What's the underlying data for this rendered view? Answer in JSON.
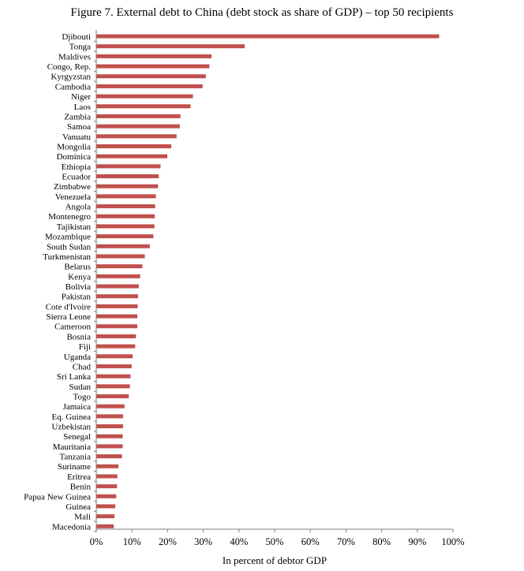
{
  "chart_data": {
    "type": "bar",
    "orientation": "horizontal",
    "title": "Figure 7. External debt to China (debt stock as share of GDP) – top 50 recipients",
    "xlabel": "In percent of debtor GDP",
    "ylabel": "",
    "xlim": [
      0,
      100
    ],
    "xticks": [
      "0%",
      "10%",
      "20%",
      "30%",
      "40%",
      "50%",
      "60%",
      "70%",
      "80%",
      "90%",
      "100%"
    ],
    "grid": false,
    "legend": "none",
    "bar_color": "#c0504d",
    "categories": [
      "Djibouti",
      "Tonga",
      "Maldives",
      "Congo, Rep.",
      "Kyrgyzstan",
      "Cambodia",
      "Niger",
      "Laos",
      "Zambia",
      "Samoa",
      "Vanuatu",
      "Mongolia",
      "Dominica",
      "Ethiopia",
      "Ecuador",
      "Zimbabwe",
      "Venezuela",
      "Angola",
      "Montenegro",
      "Tajikistan",
      "Mozambique",
      "South Sudan",
      "Turkmenistan",
      "Belarus",
      "Kenya",
      "Bolivia",
      "Pakistan",
      "Cote d'Ivoire",
      "Sierra Leone",
      "Cameroon",
      "Bosnia",
      "Fiji",
      "Uganda",
      "Chad",
      "Sri Lanka",
      "Sudan",
      "Togo",
      "Jamaica",
      "Eq. Guinea",
      "Uzbekistan",
      "Senegal",
      "Mauritania",
      "Tanzania",
      "Suriname",
      "Eritrea",
      "Benin",
      "Papua New Guinea",
      "Guinea",
      "Mali",
      "Macedonia"
    ],
    "values": [
      96.0,
      41.5,
      32.2,
      31.6,
      30.6,
      29.7,
      27.0,
      26.3,
      23.5,
      23.3,
      22.4,
      20.9,
      19.8,
      17.9,
      17.4,
      17.2,
      16.6,
      16.4,
      16.3,
      16.2,
      15.9,
      14.9,
      13.5,
      12.8,
      12.2,
      11.8,
      11.6,
      11.5,
      11.4,
      11.4,
      11.0,
      10.8,
      10.1,
      9.8,
      9.5,
      9.3,
      9.0,
      7.8,
      7.4,
      7.4,
      7.3,
      7.3,
      7.1,
      6.1,
      5.8,
      5.7,
      5.5,
      5.2,
      5.0,
      4.8
    ]
  }
}
